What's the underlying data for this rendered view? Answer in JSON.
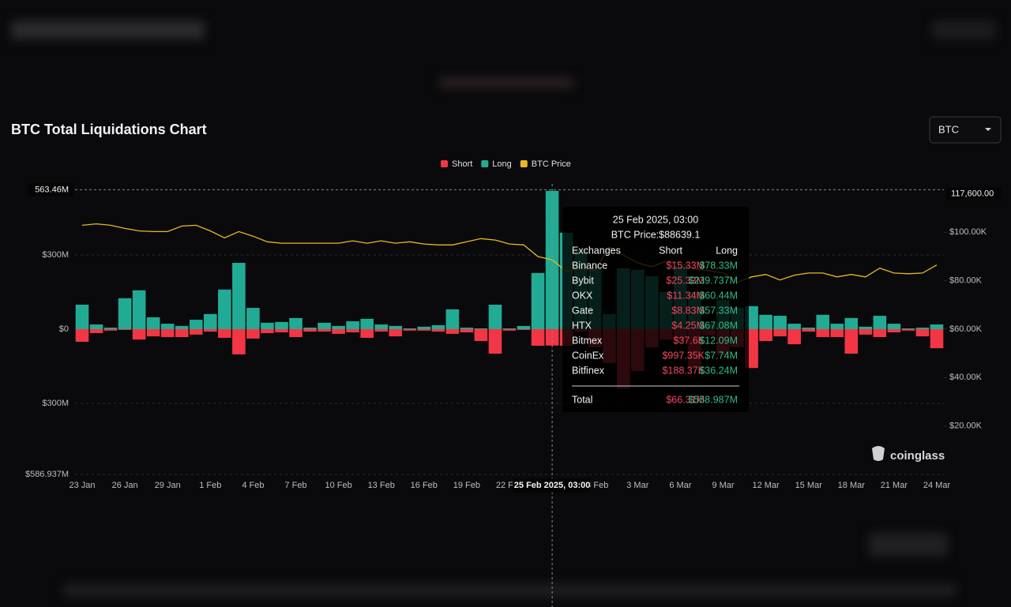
{
  "header": {
    "title": "BTC Total Liquidations Chart",
    "selector": "BTC"
  },
  "chart_data": {
    "type": "bar",
    "categories": [
      "23 Jan",
      null,
      null,
      "26 Jan",
      null,
      null,
      "29 Jan",
      null,
      null,
      "1 Feb",
      null,
      null,
      "4 Feb",
      null,
      null,
      "7 Feb",
      null,
      null,
      "10 Feb",
      null,
      null,
      "13 Feb",
      null,
      null,
      "16 Feb",
      null,
      null,
      "19 Feb",
      null,
      null,
      "22 Feb",
      null,
      null,
      null,
      null,
      null,
      "28 Feb",
      null,
      null,
      "3 Mar",
      null,
      null,
      "6 Mar",
      null,
      null,
      "9 Mar",
      null,
      null,
      "12 Mar",
      null,
      null,
      "15 Mar",
      null,
      null,
      "18 Mar",
      null,
      null,
      "21 Mar",
      null,
      null,
      "24 Mar"
    ],
    "series": [
      {
        "name": "Short",
        "color": "#f23645",
        "values": [
          -51,
          -16,
          -6,
          -3,
          -42,
          -29,
          -32,
          -32,
          -22,
          -10,
          -35,
          -102,
          -38,
          -16,
          -13,
          -32,
          -10,
          -10,
          -19,
          -13,
          -35,
          -10,
          -29,
          -6,
          -6,
          -10,
          -19,
          -13,
          -48,
          -99,
          -6,
          -3,
          -67,
          -66.31,
          -67,
          -10,
          -73,
          -137,
          -240,
          -169,
          -73,
          -42,
          -48,
          -153,
          -26,
          -105,
          -73,
          -157,
          -48,
          -29,
          -61,
          -10,
          -32,
          -32,
          -99,
          -22,
          -32,
          -13,
          -6,
          -29,
          -77
        ]
      },
      {
        "name": "Long",
        "color": "#22ab94",
        "values": [
          99,
          19,
          6,
          125,
          157,
          48,
          22,
          13,
          38,
          61,
          160,
          268,
          86,
          26,
          29,
          45,
          6,
          26,
          13,
          32,
          42,
          19,
          13,
          3,
          10,
          16,
          80,
          6,
          3,
          99,
          3,
          13,
          227,
          558.987,
          390,
          322,
          246,
          61,
          246,
          240,
          214,
          150,
          256,
          150,
          22,
          118,
          86,
          93,
          58,
          54,
          22,
          6,
          58,
          22,
          45,
          10,
          54,
          22,
          3,
          6,
          19
        ]
      },
      {
        "name": "BTC Price",
        "type": "line",
        "axis": "y2",
        "color": "#e8b923",
        "values": [
          102900,
          103500,
          102900,
          101600,
          100600,
          100300,
          100300,
          102600,
          102900,
          100600,
          97700,
          100300,
          98400,
          96100,
          95500,
          95500,
          95500,
          95500,
          95500,
          96500,
          95500,
          96500,
          95500,
          96100,
          95200,
          94800,
          94800,
          96100,
          97400,
          96800,
          95200,
          94800,
          90000,
          88639.1,
          83900,
          84800,
          84200,
          93900,
          90600,
          87400,
          85800,
          88100,
          87400,
          84800,
          84200,
          83200,
          79400,
          81600,
          82600,
          80300,
          82300,
          83200,
          83200,
          81600,
          82600,
          81600,
          85200,
          83200,
          82900,
          83200,
          86500
        ]
      }
    ],
    "ylim": [
      -586.937,
      586.937
    ],
    "yticks": [
      {
        "value": -586.937,
        "label": "$586.937M"
      },
      {
        "value": -300,
        "label": "$300M"
      },
      {
        "value": 0,
        "label": "$0"
      },
      {
        "value": 300,
        "label": "$300M"
      }
    ],
    "y2lim": [
      0,
      120000
    ],
    "y2ticks": [
      {
        "value": 20000,
        "label": "$20.00K"
      },
      {
        "value": 40000,
        "label": "$40.00K"
      },
      {
        "value": 60000,
        "label": "$60.00K"
      },
      {
        "value": 80000,
        "label": "$80.00K"
      },
      {
        "value": 100000,
        "label": "$100.00K"
      }
    ],
    "grid": true,
    "legend": "top",
    "crosshair": {
      "x_label": "25 Feb 2025, 03:00",
      "y": {
        "value": 563.46,
        "label": "563.46M"
      },
      "y2": {
        "value": 117600,
        "label": "117,600.00"
      }
    },
    "tooltip": {
      "title": "25 Feb 2025, 03:00",
      "subtitle": "BTC Price:$88639.1",
      "columns": [
        "Exchanges",
        "Short",
        "Long"
      ],
      "rows": [
        [
          "Binance",
          "$15.33M",
          "$78.33M"
        ],
        [
          "Bybit",
          "$25.33M",
          "$239.737M"
        ],
        [
          "OKX",
          "$11.34M",
          "$60.44M"
        ],
        [
          "Gate",
          "$8.83M",
          "$57.33M"
        ],
        [
          "HTX",
          "$4.25M",
          "$67.08M"
        ],
        [
          "Bitmex",
          "$37.6K",
          "$12.09M"
        ],
        [
          "CoinEx",
          "$997.35K",
          "$7.74M"
        ],
        [
          "Bitfinex",
          "$188.37K",
          "$36.24M"
        ]
      ],
      "total": [
        "Total",
        "$66.31M",
        "$558.987M"
      ]
    },
    "watermark": "coinglass"
  }
}
